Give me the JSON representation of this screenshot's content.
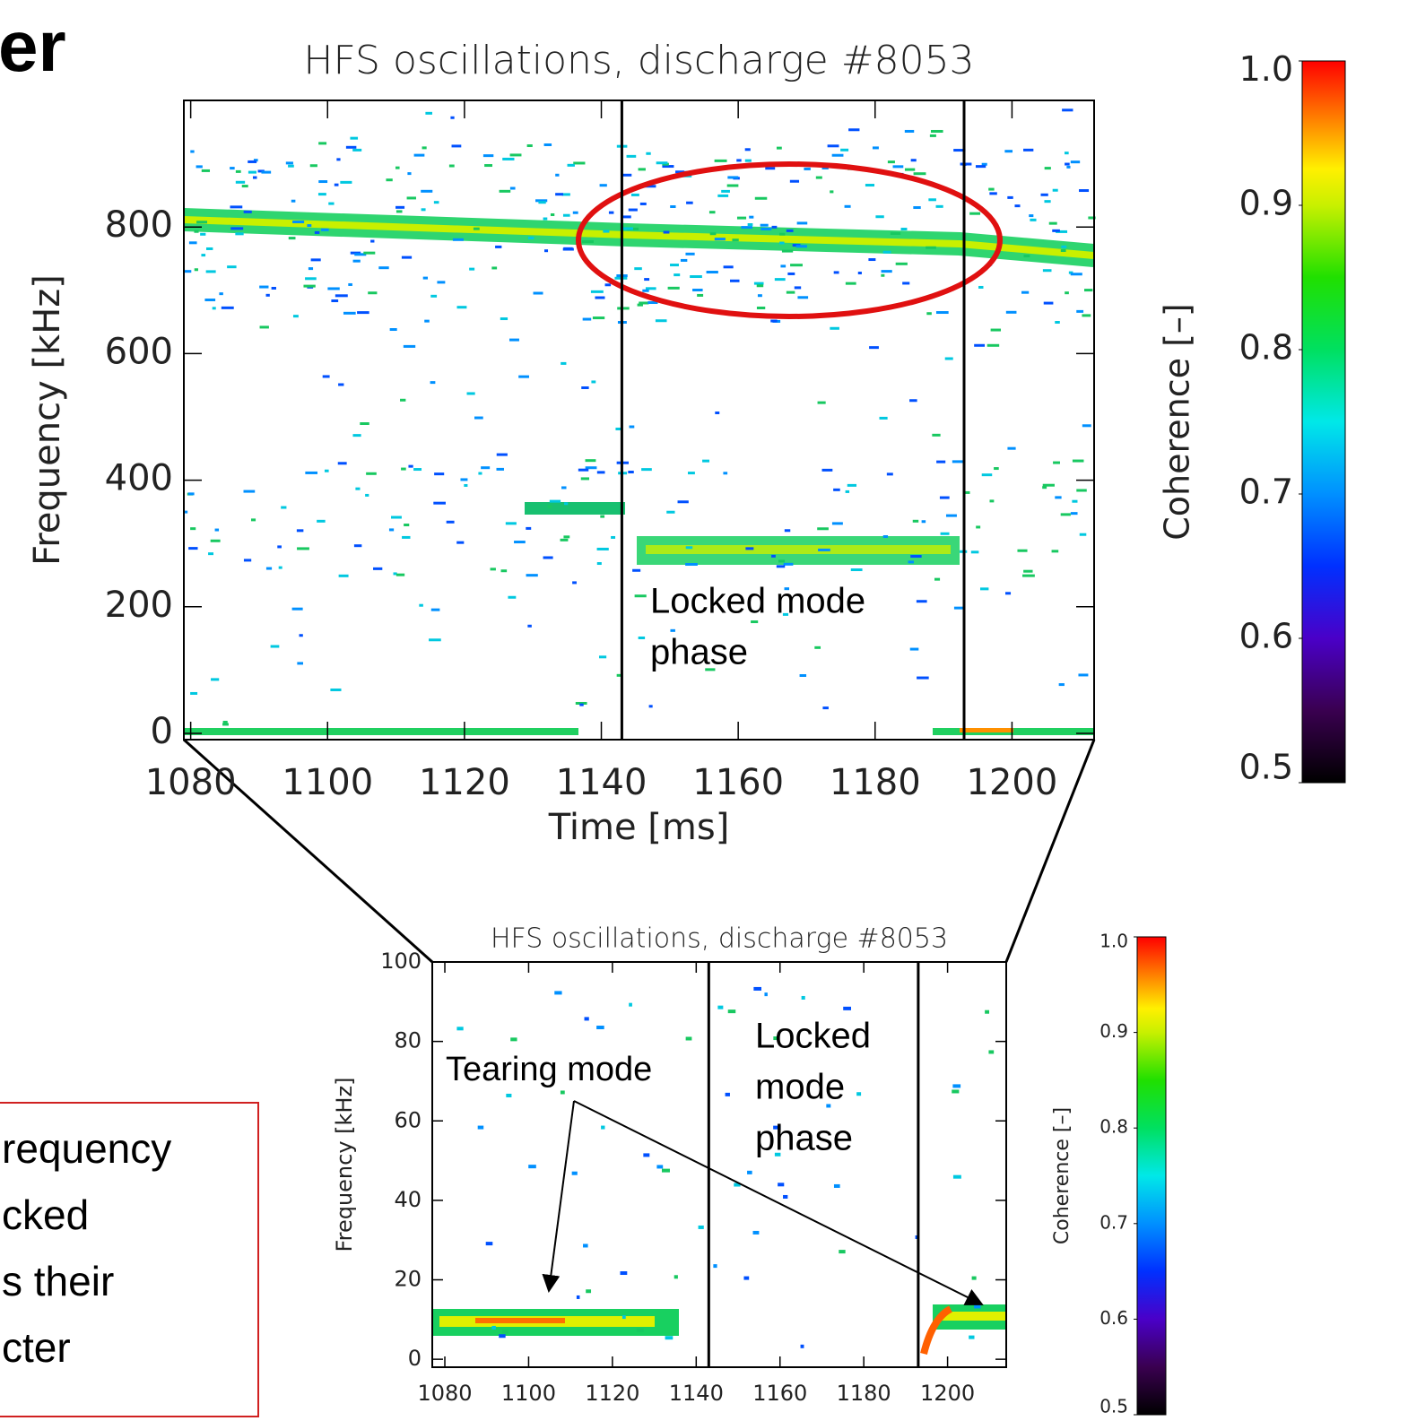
{
  "slide": {
    "title_fragment": "er",
    "note_lines": [
      "requency",
      "cked",
      "s their",
      "cter"
    ]
  },
  "chart_data": [
    {
      "type": "spectrogram",
      "title": "HFS oscillations, discharge #8053",
      "x_label": "Time [ms]",
      "y_label": "Frequency [kHz]",
      "xlim": [
        1079,
        1212
      ],
      "xticks": [
        1080,
        1100,
        1120,
        1140,
        1160,
        1180,
        1200
      ],
      "ylim": [
        -10,
        1000
      ],
      "yticks": [
        0,
        200,
        400,
        600,
        800
      ],
      "vlines": [
        1143,
        1193
      ],
      "colorbar": {
        "label": "Coherence [–]",
        "lim": [
          0.5,
          1
        ],
        "ticks": [
          0.5,
          0.6,
          0.7,
          0.8,
          0.9,
          {
            "value": 1,
            "label": "1.0"
          }
        ]
      },
      "annotations": [
        {
          "lines": [
            "Locked mode",
            "phase"
          ]
        }
      ]
    },
    {
      "type": "spectrogram",
      "title": "HFS oscillations, discharge #8053",
      "y_label": "Frequency [kHz]",
      "xlim": [
        1077,
        1214
      ],
      "xticks": [
        1080,
        1100,
        1120,
        1140,
        1160,
        1180,
        1200
      ],
      "ylim": [
        -2,
        100
      ],
      "yticks": [
        0,
        20,
        40,
        60,
        80,
        100
      ],
      "vlines": [
        1143,
        1193
      ],
      "colorbar": {
        "label": "Coherence [–]",
        "lim": [
          0.5,
          1
        ],
        "ticks": [
          0.5,
          0.6,
          0.7,
          0.8,
          0.9,
          {
            "value": 1,
            "label": "1.0"
          }
        ]
      },
      "annotations": [
        {
          "lines": [
            "Tearing mode"
          ]
        },
        {
          "lines": [
            "Locked",
            "mode",
            "phase"
          ]
        }
      ]
    }
  ]
}
